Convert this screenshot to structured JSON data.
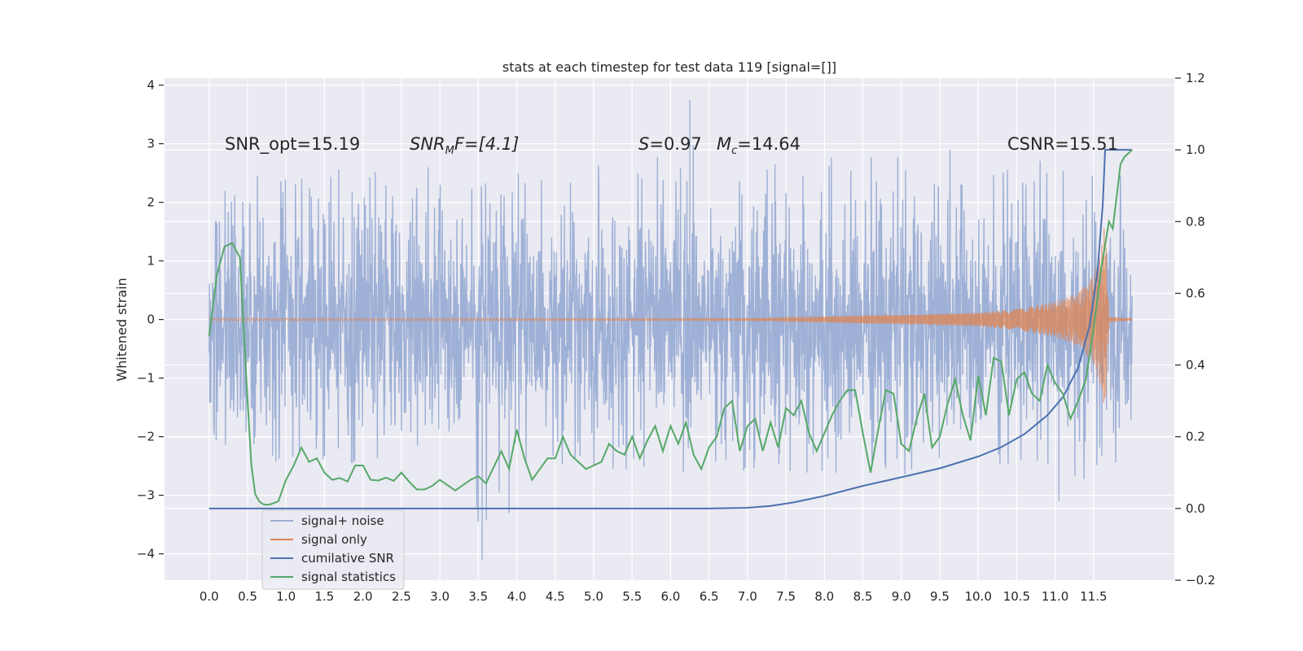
{
  "chart_data": {
    "type": "line",
    "title": "stats at each timestep for test data 119 [signal=[]]",
    "ylabel": "Whitened strain",
    "xlabel": "",
    "xlim": [
      -0.58,
      12.55
    ],
    "ylim": [
      -4.45,
      4.12
    ],
    "y2lim": [
      -0.2,
      1.2
    ],
    "x_ticks": [
      0.0,
      0.5,
      1.0,
      1.5,
      2.0,
      2.5,
      3.0,
      3.5,
      4.0,
      4.5,
      5.0,
      5.5,
      6.0,
      6.5,
      7.0,
      7.5,
      8.0,
      8.5,
      9.0,
      9.5,
      10.0,
      10.5,
      11.0,
      11.5
    ],
    "x_tick_labels": [
      "0.0",
      "0.5",
      "1.0",
      "1.5",
      "2.0",
      "2.5",
      "3.0",
      "3.5",
      "4.0",
      "4.5",
      "5.0",
      "5.5",
      "6.0",
      "6.5",
      "7.0",
      "7.5",
      "8.0",
      "8.5",
      "9.0",
      "9.5",
      "10.0",
      "10.5",
      "11.0",
      "11.5"
    ],
    "y_ticks": [
      -4,
      -3,
      -2,
      -1,
      0,
      1,
      2,
      3,
      4
    ],
    "y_tick_labels": [
      "−4",
      "−3",
      "−2",
      "−1",
      "0",
      "1",
      "2",
      "3",
      "4"
    ],
    "y2_ticks": [
      -0.2,
      0.0,
      0.2,
      0.4,
      0.6,
      0.8,
      1.0,
      1.2
    ],
    "y2_tick_labels": [
      "−0.2",
      "0.0",
      "0.2",
      "0.4",
      "0.6",
      "0.8",
      "1.0",
      "1.2"
    ],
    "grid": true,
    "legend_placement": "lower-left",
    "colors": {
      "background": "#eaeaf2",
      "grid": "#ffffff",
      "noise": "#9aadd4",
      "signal": "#dd8452",
      "snr": "#4c72b0",
      "stat": "#55a868"
    },
    "series": [
      {
        "name": "signal+ noise",
        "axis": "left",
        "x_range": [
          0.0,
          12.0
        ],
        "envelope": {
          "x": [
            0.0,
            0.3,
            0.6,
            1.0,
            2.0,
            3.0,
            3.55,
            3.9,
            4.0,
            5.0,
            6.0,
            6.25,
            7.0,
            8.0,
            9.0,
            10.0,
            11.0,
            11.55,
            12.0
          ],
          "max": [
            2.0,
            2.3,
            2.5,
            2.6,
            2.6,
            2.6,
            2.6,
            2.6,
            2.6,
            2.7,
            2.8,
            3.75,
            2.8,
            2.8,
            2.9,
            2.9,
            2.8,
            2.8,
            2.4
          ],
          "min": [
            -2.0,
            -2.2,
            -2.4,
            -2.5,
            -2.5,
            -2.5,
            -4.1,
            -3.3,
            -2.5,
            -2.5,
            -2.8,
            -2.6,
            -2.9,
            -2.7,
            -2.8,
            -2.7,
            -3.1,
            -2.6,
            -2.3
          ]
        }
      },
      {
        "name": "signal only",
        "axis": "left",
        "x": [
          0.0,
          7.0,
          7.5,
          8.0,
          8.5,
          9.0,
          9.5,
          10.0,
          10.5,
          11.0,
          11.3,
          11.5,
          11.6,
          11.65,
          11.7,
          12.0
        ],
        "amplitude": [
          0.02,
          0.02,
          0.03,
          0.05,
          0.07,
          0.08,
          0.1,
          0.12,
          0.18,
          0.3,
          0.45,
          0.75,
          1.2,
          1.7,
          0.05,
          0.02
        ]
      },
      {
        "name": "cumilative SNR",
        "axis": "right",
        "x": [
          0.0,
          6.0,
          6.5,
          7.0,
          7.3,
          7.6,
          8.0,
          8.5,
          9.0,
          9.5,
          10.0,
          10.3,
          10.6,
          10.9,
          11.1,
          11.3,
          11.45,
          11.55,
          11.62,
          11.65,
          12.0
        ],
        "values": [
          0.0,
          0.0,
          0.0,
          0.002,
          0.007,
          0.017,
          0.035,
          0.063,
          0.087,
          0.112,
          0.145,
          0.171,
          0.207,
          0.26,
          0.31,
          0.393,
          0.51,
          0.66,
          0.85,
          1.0,
          1.0
        ]
      },
      {
        "name": "signal statistics",
        "axis": "right",
        "x": [
          0.0,
          0.1,
          0.2,
          0.3,
          0.4,
          0.5,
          0.55,
          0.6,
          0.65,
          0.7,
          0.75,
          0.8,
          0.9,
          1.0,
          1.1,
          1.2,
          1.3,
          1.4,
          1.5,
          1.6,
          1.7,
          1.8,
          1.9,
          2.0,
          2.1,
          2.2,
          2.3,
          2.4,
          2.5,
          2.6,
          2.7,
          2.8,
          2.9,
          3.0,
          3.2,
          3.4,
          3.5,
          3.6,
          3.8,
          3.9,
          4.0,
          4.1,
          4.2,
          4.4,
          4.5,
          4.6,
          4.7,
          4.8,
          4.9,
          5.0,
          5.1,
          5.2,
          5.3,
          5.4,
          5.5,
          5.6,
          5.7,
          5.8,
          5.9,
          6.0,
          6.1,
          6.2,
          6.3,
          6.4,
          6.5,
          6.6,
          6.7,
          6.8,
          6.9,
          7.0,
          7.1,
          7.2,
          7.3,
          7.4,
          7.5,
          7.6,
          7.7,
          7.8,
          7.9,
          8.0,
          8.1,
          8.2,
          8.3,
          8.4,
          8.5,
          8.6,
          8.7,
          8.8,
          8.9,
          9.0,
          9.1,
          9.2,
          9.3,
          9.4,
          9.5,
          9.6,
          9.7,
          9.8,
          9.9,
          10.0,
          10.1,
          10.2,
          10.3,
          10.4,
          10.5,
          10.6,
          10.7,
          10.8,
          10.9,
          11.0,
          11.1,
          11.2,
          11.3,
          11.4,
          11.5,
          11.6,
          11.7,
          11.75,
          11.8,
          11.85,
          11.9,
          12.0
        ],
        "values": [
          0.48,
          0.65,
          0.73,
          0.74,
          0.7,
          0.3,
          0.12,
          0.04,
          0.02,
          0.012,
          0.01,
          0.012,
          0.02,
          0.08,
          0.12,
          0.17,
          0.13,
          0.14,
          0.1,
          0.08,
          0.085,
          0.075,
          0.12,
          0.12,
          0.08,
          0.078,
          0.086,
          0.077,
          0.1,
          0.075,
          0.053,
          0.053,
          0.063,
          0.08,
          0.05,
          0.08,
          0.09,
          0.07,
          0.16,
          0.11,
          0.22,
          0.14,
          0.08,
          0.14,
          0.14,
          0.2,
          0.15,
          0.13,
          0.11,
          0.12,
          0.13,
          0.18,
          0.16,
          0.15,
          0.2,
          0.14,
          0.19,
          0.23,
          0.16,
          0.23,
          0.18,
          0.24,
          0.15,
          0.11,
          0.17,
          0.2,
          0.28,
          0.3,
          0.16,
          0.23,
          0.25,
          0.16,
          0.24,
          0.17,
          0.28,
          0.26,
          0.3,
          0.21,
          0.16,
          0.21,
          0.26,
          0.3,
          0.33,
          0.33,
          0.21,
          0.1,
          0.22,
          0.33,
          0.32,
          0.18,
          0.16,
          0.25,
          0.32,
          0.17,
          0.2,
          0.29,
          0.36,
          0.26,
          0.19,
          0.37,
          0.26,
          0.42,
          0.41,
          0.26,
          0.36,
          0.38,
          0.32,
          0.3,
          0.4,
          0.35,
          0.32,
          0.25,
          0.3,
          0.36,
          0.5,
          0.67,
          0.8,
          0.78,
          0.87,
          0.96,
          0.98,
          1.0
        ]
      }
    ],
    "annotations": {
      "snr_opt": "SNR_opt=15.19",
      "snr_mf": "SNR",
      "snr_mf_sub": "M",
      "snr_mf_rest": "F=[4.1]",
      "s_label": "S",
      "s_value": "=0.97",
      "mc_label": "M",
      "mc_sub": "c",
      "mc_value": "=14.64",
      "csnr": "CSNR=15.51"
    }
  }
}
